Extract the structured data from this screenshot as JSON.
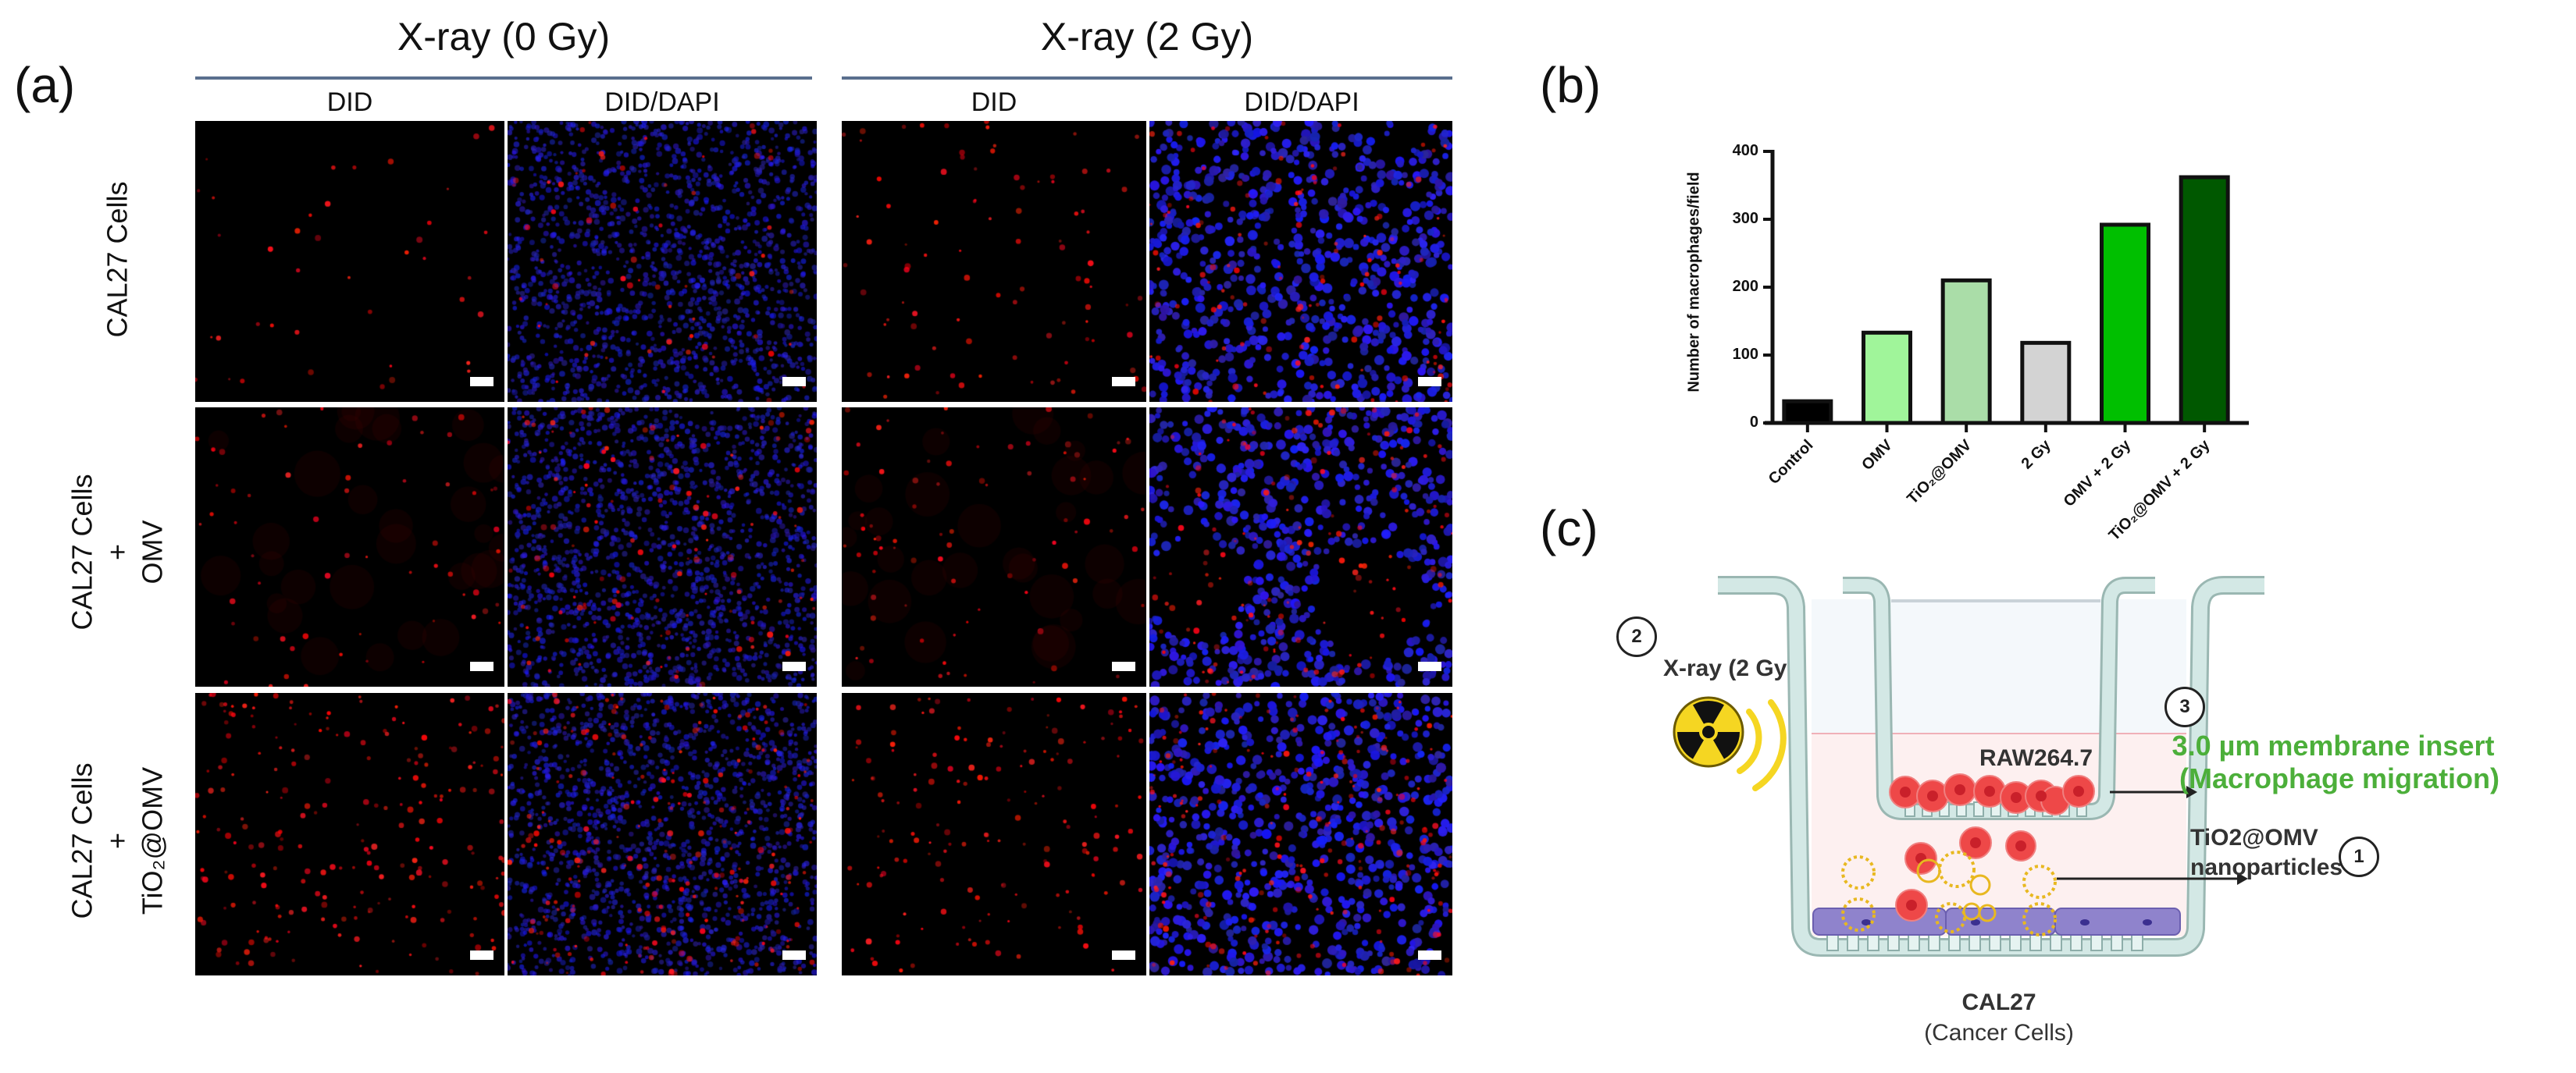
{
  "panel_a": {
    "label": "(a)",
    "groups": [
      {
        "title": "X-ray (0 Gy)",
        "columns": [
          "DID",
          "DID/DAPI"
        ]
      },
      {
        "title": "X-ray (2 Gy)",
        "columns": [
          "DID",
          "DID/DAPI"
        ]
      }
    ],
    "rows": [
      {
        "line1": "CAL27  Cells",
        "line2": "",
        "line3": ""
      },
      {
        "line1": "CAL27  Cells",
        "line2": "+",
        "line3": "OMV"
      },
      {
        "line1": "CAL27  Cells",
        "line2": "+",
        "line3": "TiO₂@OMV"
      }
    ],
    "colors": {
      "did_red": "#ff2020",
      "dapi_blue": "#2a2aff",
      "line": "#5a6f8e"
    }
  },
  "panel_b": {
    "label": "(b)"
  },
  "chart_data": {
    "type": "bar",
    "title": "",
    "xlabel": "",
    "ylabel": "Number of macrophages/field",
    "categories": [
      "Control",
      "OMV",
      "TiO₂@OMV",
      "2 Gy",
      "OMV + 2 Gy",
      "TiO₂@OMV + 2 Gy"
    ],
    "values": [
      32,
      133,
      210,
      118,
      292,
      362
    ],
    "colors": [
      "#000000",
      "#a0f59a",
      "#aadda8",
      "#d3d3d3",
      "#00bf00",
      "#005800"
    ],
    "ylim": [
      0,
      400
    ],
    "yticks": [
      0,
      100,
      200,
      300,
      400
    ],
    "grid": false,
    "legend": "none"
  },
  "panel_c": {
    "label": "(c)",
    "xray": {
      "step": "2",
      "text": "X-ray (2 Gy )"
    },
    "insert_cells": "RAW264.7",
    "membrane": {
      "step": "3",
      "line1": "3.0 µm membrane insert",
      "line2": "(Macrophage migration)",
      "color": "#4caf3a"
    },
    "nanoparticles": {
      "step": "1",
      "line1": "TiO2@OMV",
      "line2": "nanoparticles"
    },
    "bottom_cells": {
      "line1": "CAL27",
      "line2": "(Cancer Cells)"
    }
  }
}
